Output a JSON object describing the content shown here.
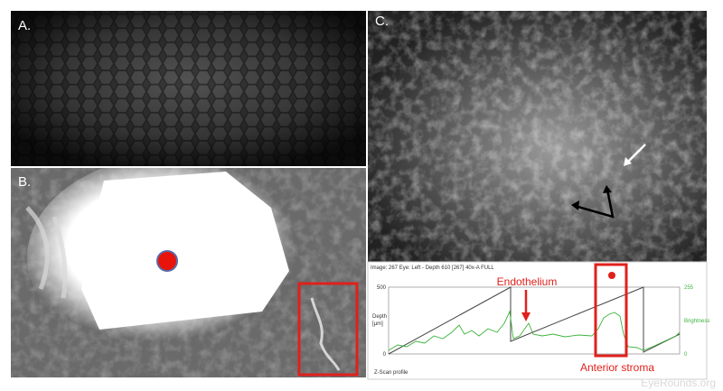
{
  "panels": {
    "a": {
      "label": "A."
    },
    "b": {
      "label": "B."
    },
    "c": {
      "label": "C."
    }
  },
  "zscan": {
    "header": "Image: 267   Eye: Left - Depth 610 [267] 40x-A FULL",
    "depth_axis": {
      "label_line1": "Depth",
      "label_line2": "[µm]",
      "top": "500",
      "bottom": "0"
    },
    "brightness_axis": {
      "label": "Brightness",
      "top": "255",
      "bottom": "0"
    },
    "caption": "Z-Scan profile"
  },
  "annotations": {
    "endothelium": "Endothelium",
    "anterior_stroma": "Anterior stroma"
  },
  "watermark": "EyeRounds.org"
}
